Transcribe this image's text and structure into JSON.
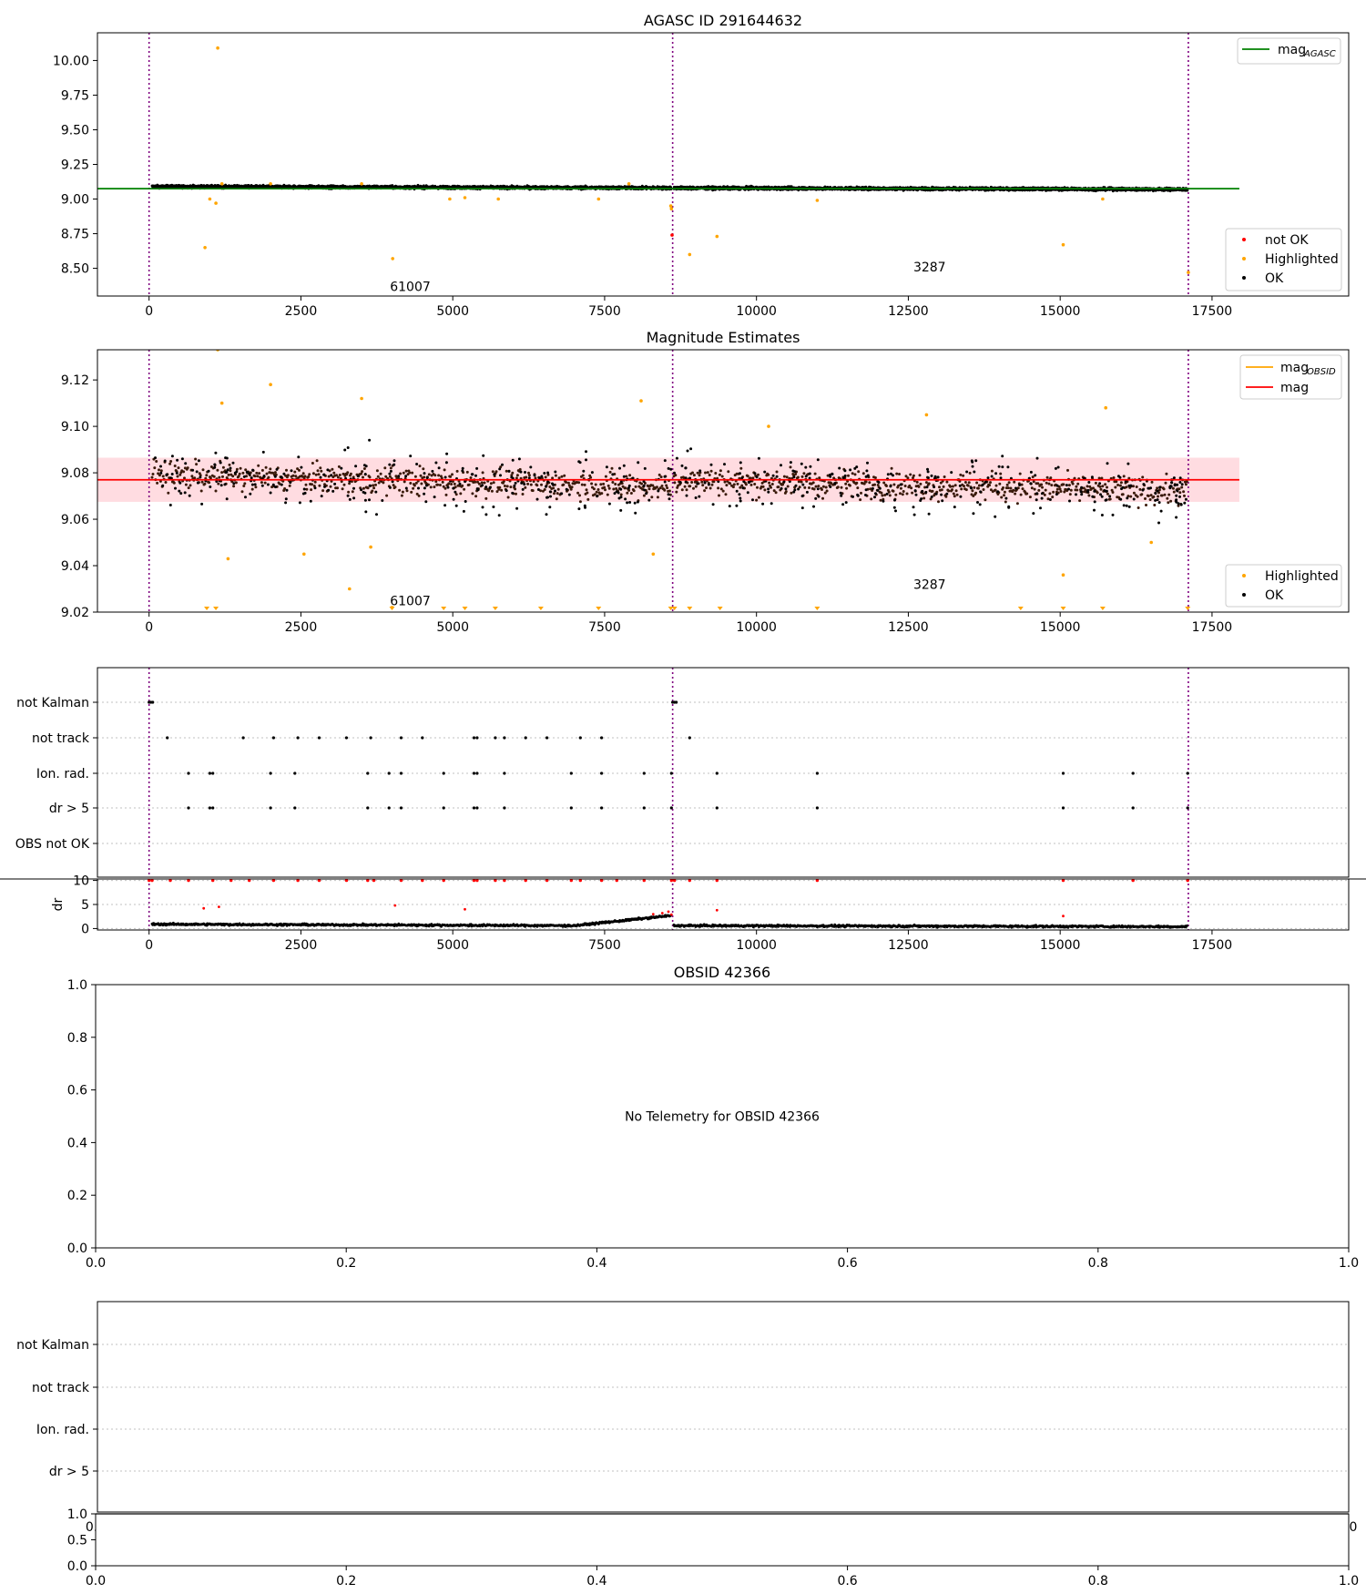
{
  "figure": {
    "colors": {
      "ok": "#000000",
      "highlighted": "#ffa500",
      "not_ok": "#ff0000",
      "agasc": "#008000",
      "mag": "#ff0000",
      "mag_obsid": "#ffa500",
      "band": "#ffc0c8",
      "vline": "#800080",
      "grid": "#c0c0c0",
      "cloud": "#3a1a0a"
    }
  },
  "chart_data": [
    {
      "id": "p1",
      "type": "scatter",
      "title": "AGASC ID 291644632",
      "xlim": [
        -850,
        19750
      ],
      "ylim": [
        8.3,
        10.2
      ],
      "xticks": [
        0,
        2500,
        5000,
        7500,
        10000,
        12500,
        15000,
        17500
      ],
      "xtick_labels": [
        "0",
        "2500",
        "5000",
        "7500",
        "10000",
        "12500",
        "15000",
        "17500"
      ],
      "yticks": [
        8.5,
        8.75,
        9.0,
        9.25,
        9.5,
        9.75,
        10.0
      ],
      "ytick_labels": [
        "8.50",
        "8.75",
        "9.00",
        "9.25",
        "9.50",
        "9.75",
        "10.00"
      ],
      "vlines": [
        0,
        8620,
        17110
      ],
      "mag_agasc": 9.075,
      "mag_agasc_range": [
        -850,
        17950
      ],
      "ok_band": {
        "segments": [
          [
            50,
            8600,
            9.09,
            9.08
          ],
          [
            8640,
            17100,
            9.08,
            9.07
          ]
        ],
        "spread": 0.018,
        "density": 3
      },
      "highlighted": [
        [
          920,
          8.65
        ],
        [
          1130,
          10.09
        ],
        [
          4010,
          8.57
        ],
        [
          8590,
          8.95
        ],
        [
          8600,
          8.93
        ],
        [
          8900,
          8.6
        ],
        [
          9350,
          8.73
        ],
        [
          15050,
          8.67
        ],
        [
          17110,
          8.47
        ],
        [
          1000,
          9.0
        ],
        [
          1100,
          8.97
        ],
        [
          4950,
          9.0
        ],
        [
          5200,
          9.01
        ],
        [
          5750,
          9.0
        ],
        [
          7400,
          9.0
        ],
        [
          11000,
          8.99
        ],
        [
          15700,
          9.0
        ],
        [
          1200,
          9.11
        ],
        [
          2000,
          9.11
        ],
        [
          3500,
          9.11
        ],
        [
          7900,
          9.11
        ]
      ],
      "not_ok": [
        [
          8610,
          8.74
        ]
      ],
      "annotations": [
        {
          "text": "61007",
          "x": 4300,
          "y": 8.37
        },
        {
          "text": "3287",
          "x": 12850,
          "y": 8.51
        }
      ],
      "legend_upper": [
        "mag_AGASC"
      ],
      "legend_lower": [
        "not OK",
        "Highlighted",
        "OK"
      ],
      "legend_upper_labels": {
        "mag": "mag",
        "sub": "AGASC"
      },
      "legend_lower_labels": [
        "not OK",
        "Highlighted",
        "OK"
      ]
    },
    {
      "id": "p2",
      "type": "scatter",
      "title": "Magnitude Estimates",
      "xlim": [
        -850,
        19750
      ],
      "ylim": [
        9.02,
        9.133
      ],
      "xticks": [
        0,
        2500,
        5000,
        7500,
        10000,
        12500,
        15000,
        17500
      ],
      "xtick_labels": [
        "0",
        "2500",
        "5000",
        "7500",
        "10000",
        "12500",
        "15000",
        "17500"
      ],
      "yticks": [
        9.02,
        9.04,
        9.06,
        9.08,
        9.1,
        9.12
      ],
      "ytick_labels": [
        "9.02",
        "9.04",
        "9.06",
        "9.08",
        "9.10",
        "9.12"
      ],
      "vlines": [
        0,
        8620,
        17110
      ],
      "mag": 9.077,
      "mag_band": [
        9.0675,
        9.0865
      ],
      "mag_range": [
        -850,
        17950
      ],
      "ok_band": {
        "segments": [
          [
            50,
            8600,
            9.079,
            9.074
          ],
          [
            8640,
            17100,
            9.077,
            9.072
          ]
        ],
        "spread": 0.01,
        "outer_spread": 0.022,
        "density": 14
      },
      "highlighted": [
        [
          1130,
          9.133
        ],
        [
          2000,
          9.118
        ],
        [
          1200,
          9.11
        ],
        [
          3500,
          9.112
        ],
        [
          8100,
          9.111
        ],
        [
          15750,
          9.108
        ],
        [
          3300,
          9.03
        ],
        [
          1300,
          9.043
        ],
        [
          2550,
          9.045
        ],
        [
          3650,
          9.048
        ],
        [
          4000,
          9.022
        ],
        [
          15050,
          9.036
        ],
        [
          16500,
          9.05
        ],
        [
          8300,
          9.045
        ],
        [
          10200,
          9.1
        ],
        [
          12800,
          9.105
        ]
      ],
      "clipped_low": [
        950,
        1100,
        4000,
        4850,
        5200,
        5700,
        6450,
        7400,
        8590,
        8650,
        8900,
        9400,
        11000,
        14350,
        15050,
        15700,
        17100
      ],
      "annotations": [
        {
          "text": "61007",
          "x": 4300,
          "y": 9.025
        },
        {
          "text": "3287",
          "x": 12850,
          "y": 9.032
        }
      ],
      "legend_upper_labels": {
        "mag_obsid": "mag",
        "sub": "OBSID",
        "mag": "mag"
      },
      "legend_lower_labels": [
        "Highlighted",
        "OK"
      ]
    },
    {
      "id": "p3",
      "type": "scatter",
      "xlim": [
        -850,
        19750
      ],
      "categories": [
        "not Kalman",
        "not track",
        "Ion. rad.",
        "dr > 5",
        "OBS not OK"
      ],
      "flags": {
        "not Kalman": [
          0,
          30,
          60,
          8620,
          8650,
          8680
        ],
        "not track": [
          300,
          1550,
          2050,
          2450,
          2800,
          3250,
          3650,
          4150,
          4500,
          5350,
          5400,
          5700,
          5850,
          6200,
          6550,
          7100,
          7450,
          8900
        ],
        "Ion. rad.": [
          650,
          1000,
          1050,
          2000,
          2400,
          3600,
          3950,
          4150,
          4850,
          5350,
          5400,
          5850,
          6950,
          7450,
          8150,
          8600,
          9350,
          11000,
          15050,
          16200,
          17100
        ],
        "dr > 5": [
          650,
          1000,
          1050,
          2000,
          2400,
          3600,
          3950,
          4150,
          4850,
          5350,
          5400,
          5850,
          6950,
          7450,
          8150,
          8600,
          9350,
          11000,
          15050,
          16200,
          17100
        ],
        "OBS not OK": []
      },
      "vlines": [
        0,
        8620,
        17110
      ]
    },
    {
      "id": "p3b",
      "type": "scatter",
      "ylabel": "dr",
      "ylim": [
        -0.3,
        10.3
      ],
      "xlim": [
        -850,
        19750
      ],
      "xticks": [
        0,
        2500,
        5000,
        7500,
        10000,
        12500,
        15000,
        17500
      ],
      "xtick_labels": [
        "0",
        "2500",
        "5000",
        "7500",
        "10000",
        "12500",
        "15000",
        "17500"
      ],
      "yticks": [
        0,
        5,
        10
      ],
      "ytick_labels": [
        "0",
        "5",
        "10"
      ],
      "vlines": [
        0,
        8620,
        17110
      ],
      "dr_segments": [
        [
          50,
          7000,
          0.9,
          0.6
        ],
        [
          7000,
          8600,
          0.6,
          2.7
        ],
        [
          8640,
          17100,
          0.6,
          0.4
        ]
      ],
      "dr_capped_red": [
        0,
        50,
        350,
        650,
        1050,
        1350,
        1650,
        2050,
        2450,
        2800,
        3250,
        3600,
        3700,
        4150,
        4500,
        4850,
        5350,
        5400,
        5700,
        5850,
        6200,
        6550,
        6950,
        7100,
        7450,
        7700,
        8150,
        8600,
        8650,
        8900,
        9350,
        11000,
        15050,
        16200,
        17100
      ],
      "dr_red_mid": [
        [
          900,
          4.2
        ],
        [
          1150,
          4.5
        ],
        [
          4050,
          4.8
        ],
        [
          5200,
          4.0
        ],
        [
          9350,
          3.8
        ],
        [
          15050,
          2.6
        ],
        [
          8300,
          3.0
        ],
        [
          8450,
          3.2
        ],
        [
          8550,
          3.5
        ],
        [
          8600,
          2.9
        ]
      ]
    },
    {
      "id": "p4",
      "type": "scatter",
      "title": "OBSID 42366",
      "xlim": [
        0,
        1
      ],
      "ylim": [
        0,
        1
      ],
      "xticks": [
        0,
        0.2,
        0.4,
        0.6,
        0.8,
        1.0
      ],
      "xtick_labels": [
        "0.0",
        "0.2",
        "0.4",
        "0.6",
        "0.8",
        "1.0"
      ],
      "yticks": [
        0,
        0.2,
        0.4,
        0.6,
        0.8,
        1.0
      ],
      "ytick_labels": [
        "0.0",
        "0.2",
        "0.4",
        "0.6",
        "0.8",
        "1.0"
      ],
      "message": "No Telemetry for OBSID 42366"
    },
    {
      "id": "p5",
      "type": "scatter",
      "categories": [
        "not Kalman",
        "not track",
        "Ion. rad.",
        "dr > 5"
      ],
      "hidden_xtick_left": "0.0",
      "hidden_xtick_right": "0"
    },
    {
      "id": "p5b",
      "type": "scatter",
      "xlim": [
        0,
        1
      ],
      "ylim": [
        0,
        1
      ],
      "xticks": [
        0,
        0.2,
        0.4,
        0.6,
        0.8,
        1.0
      ],
      "xtick_labels": [
        "0.0",
        "0.2",
        "0.4",
        "0.6",
        "0.8",
        "1.0"
      ],
      "yticks": [
        0,
        0.5,
        1.0
      ],
      "ytick_labels": [
        "0.0",
        "0.5",
        "1.0"
      ]
    }
  ]
}
